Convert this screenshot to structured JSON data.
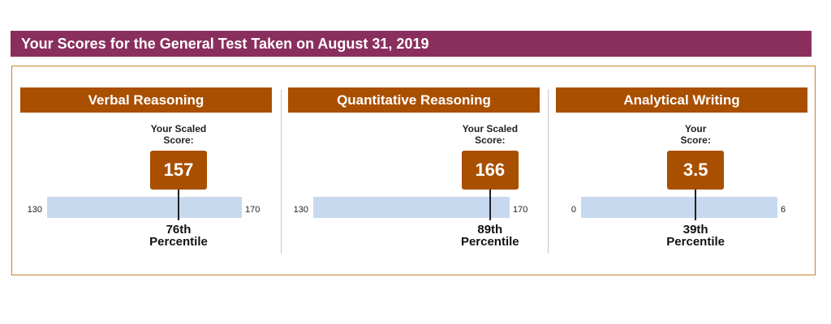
{
  "title": "Your Scores for the General Test Taken on August 31, 2019",
  "colors": {
    "title_bar": "#8a2f5d",
    "header": "#a94f00",
    "score_box": "#a94f00",
    "scale_bar": "#c7d9ee",
    "outer_border": "#c8832f"
  },
  "sections": [
    {
      "name": "Verbal Reasoning",
      "score_label_line1": "Your Scaled",
      "score_label_line2": "Score:",
      "score": "157",
      "score_value": 157,
      "scale_min": "130",
      "scale_max": "170",
      "scale_min_value": 130,
      "scale_max_value": 170,
      "percentile_line1": "76th",
      "percentile_line2": "Percentile"
    },
    {
      "name": "Quantitative Reasoning",
      "score_label_line1": "Your Scaled",
      "score_label_line2": "Score:",
      "score": "166",
      "score_value": 166,
      "scale_min": "130",
      "scale_max": "170",
      "scale_min_value": 130,
      "scale_max_value": 170,
      "percentile_line1": "89th",
      "percentile_line2": "Percentile"
    },
    {
      "name": "Analytical Writing",
      "score_label_line1": "Your",
      "score_label_line2": "Score:",
      "score": "3.5",
      "score_value": 3.5,
      "scale_min": "0",
      "scale_max": "6",
      "scale_min_value": 0,
      "scale_max_value": 6,
      "percentile_line1": "39th",
      "percentile_line2": "Percentile"
    }
  ]
}
